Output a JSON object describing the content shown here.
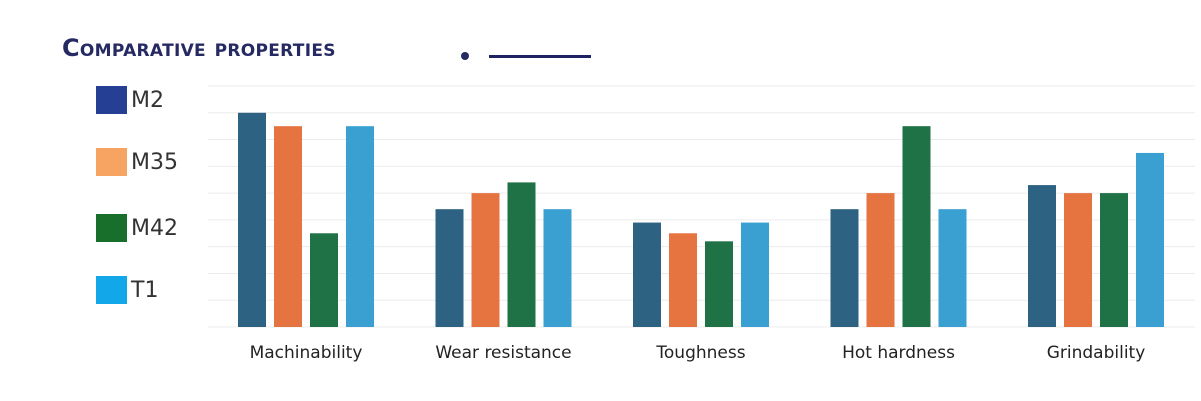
{
  "header": {
    "title": "Comparative properties"
  },
  "chart_data": {
    "type": "bar",
    "title": "Comparative properties",
    "categories": [
      "Machinability",
      "Wear resistance",
      "Toughness",
      "Hot hardness",
      "Grindability"
    ],
    "series": [
      {
        "name": "M2",
        "legend_color": "#243f94",
        "bar_color": "#2d6282",
        "values": [
          10.0,
          6.4,
          5.9,
          6.4,
          7.3
        ]
      },
      {
        "name": "M35",
        "legend_color": "#f7a462",
        "bar_color": "#e57441",
        "values": [
          9.5,
          7.0,
          5.5,
          7.0,
          7.0
        ]
      },
      {
        "name": "M42",
        "legend_color": "#186f2c",
        "bar_color": "#1f7146",
        "values": [
          5.5,
          7.4,
          5.2,
          9.5,
          7.0
        ]
      },
      {
        "name": "T1",
        "legend_color": "#12a7e8",
        "bar_color": "#39a0d1",
        "values": [
          9.5,
          6.4,
          5.9,
          6.4,
          8.5
        ]
      }
    ],
    "ylim": [
      2,
      11
    ],
    "grid": true,
    "legend_position": "left",
    "xlabel": "",
    "ylabel": ""
  }
}
